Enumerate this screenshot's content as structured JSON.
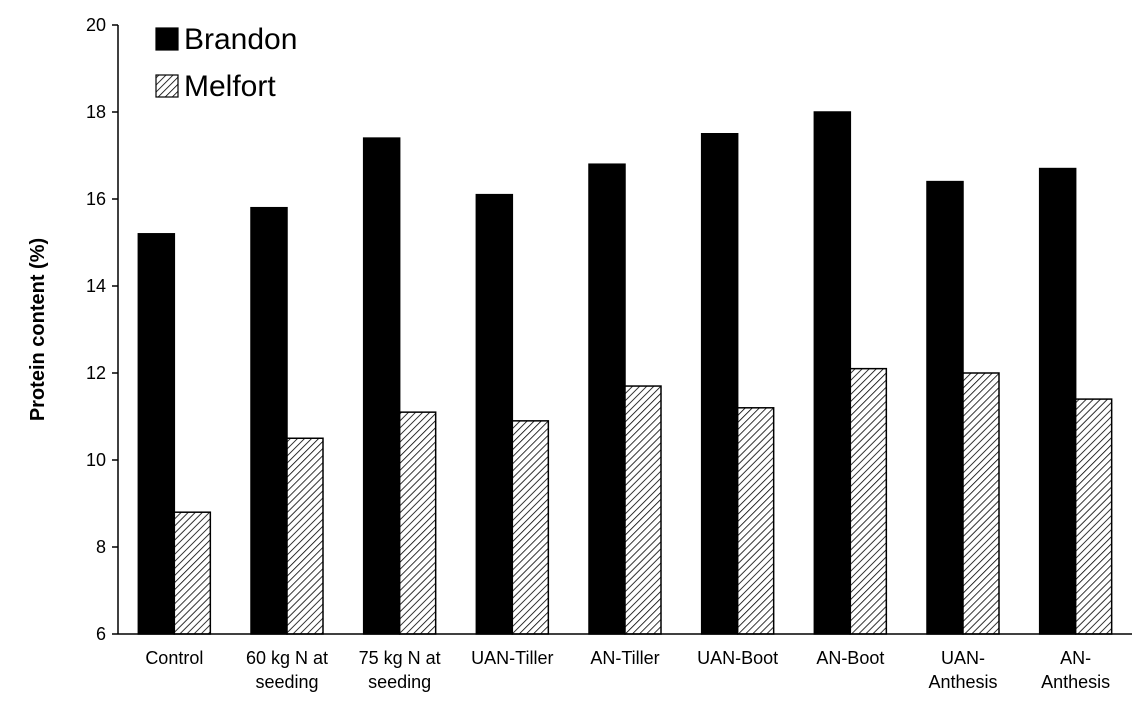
{
  "chart_data": {
    "type": "bar",
    "title": "",
    "xlabel": "",
    "ylabel": "Protein content (%)",
    "ylim": [
      6,
      20
    ],
    "yticks": [
      6,
      8,
      10,
      12,
      14,
      16,
      18,
      20
    ],
    "grid": false,
    "legend_position": "top-left",
    "categories": [
      [
        "Control"
      ],
      [
        "60 kg N at",
        "seeding"
      ],
      [
        "75 kg N at",
        "seeding"
      ],
      [
        "UAN-Tiller"
      ],
      [
        "AN-Tiller"
      ],
      [
        "UAN-Boot"
      ],
      [
        "AN-Boot"
      ],
      [
        "UAN-",
        "Anthesis"
      ],
      [
        "AN-",
        "Anthesis"
      ]
    ],
    "series": [
      {
        "name": "Brandon",
        "fill": "solid-black",
        "values": [
          15.2,
          15.8,
          17.4,
          16.1,
          16.8,
          17.5,
          18.0,
          16.4,
          16.7
        ]
      },
      {
        "name": "Melfort",
        "fill": "diagonal-hatch",
        "values": [
          8.8,
          10.5,
          11.1,
          10.9,
          11.7,
          11.2,
          12.1,
          12.0,
          11.4
        ]
      }
    ]
  }
}
